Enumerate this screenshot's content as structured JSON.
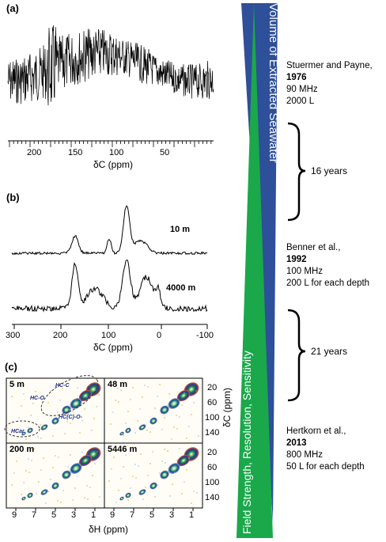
{
  "panels": {
    "a": {
      "label": "(a)",
      "ticks": [
        "200",
        "150",
        "100",
        "50"
      ],
      "axis_title": "δC (ppm)"
    },
    "b": {
      "label": "(b)",
      "ticks": [
        "300",
        "200",
        "100",
        "0",
        "-100"
      ],
      "axis_title": "δC (ppm)",
      "trace_labels": [
        "10 m",
        "4000 m"
      ]
    },
    "c": {
      "label": "(c)",
      "depths": [
        "5 m",
        "48 m",
        "200 m",
        "5446 m"
      ],
      "x_ticks": [
        "9",
        "7",
        "5",
        "3",
        "1"
      ],
      "y_ticks": [
        "20",
        "60",
        "100",
        "140"
      ],
      "x_axis_title": "δH (ppm)",
      "y_axis_title": "δC (ppm)",
      "annotations": [
        "HC-C",
        "HC-O",
        "HC(C)-O-",
        "HCar"
      ]
    }
  },
  "triangles": {
    "top_label": "Volume of Extracted Seawater",
    "bottom_label": "Field Strength, Resolution, Sensitivity",
    "blue": "#2e4f99",
    "green": "#1aa84a"
  },
  "references": [
    {
      "authors": "Stuermer and Payne,",
      "year": "1976",
      "field": "90 MHz",
      "volume": "2000 L"
    },
    {
      "authors": "Benner et al.,",
      "year": "1992",
      "field": "100 MHz",
      "volume": "200 L for each depth"
    },
    {
      "authors": "Hertkorn et al.,",
      "year": "2013",
      "field": "800 MHz",
      "volume": "50 L for each depth"
    }
  ],
  "intervals": [
    "16 years",
    "21 years"
  ]
}
